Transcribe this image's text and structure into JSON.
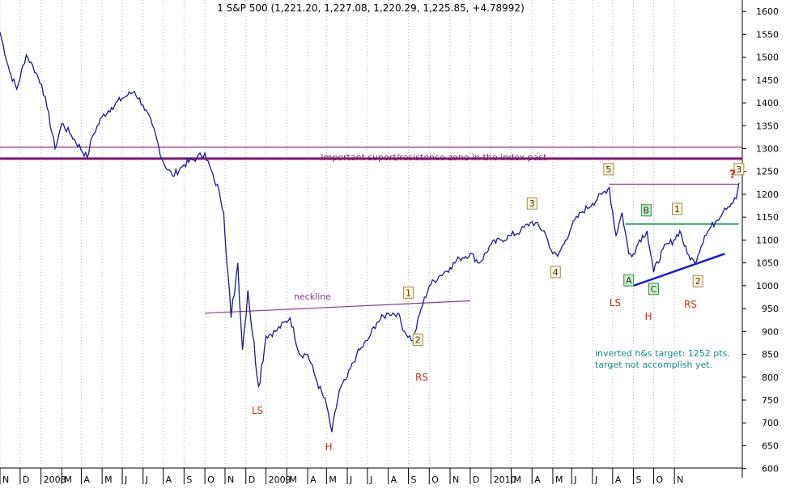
{
  "title": "1 S&P 500 (1,221.20, 1,227.08, 1,220.29, 1,225.85, +4.78992)",
  "colors": {
    "price": "#1a1a8c",
    "zone": "#7a1a6e",
    "neckline": "#8a3d8a",
    "green_line": "#2e9a5e",
    "trend": "#1a1acc",
    "red": "#c03020",
    "teal": "#1a8a8a",
    "grid": "#b8b8b8"
  },
  "annotations": {
    "zone_label": "important suport/resistence zone in the index past",
    "neckline_label": "neckline",
    "target_line1": "inverted h&s target: 1252 pts.",
    "target_line2": "target not accomplish yet.",
    "ls_left": "LS",
    "h_left": "H",
    "rs_left": "RS",
    "ls_right": "LS",
    "h_right": "H",
    "rs_right": "RS",
    "question": "?"
  },
  "wave_labels": [
    {
      "text": "1",
      "style": "yellow",
      "x": "2009-07",
      "y": 985
    },
    {
      "text": "2",
      "style": "yellow",
      "x": "2009-07-15",
      "y": 882
    },
    {
      "text": "3",
      "style": "yellow",
      "x": "2010-01-01",
      "y": 1180
    },
    {
      "text": "4",
      "style": "yellow",
      "x": "2010-02-05",
      "y": 1030
    },
    {
      "text": "5",
      "style": "yellow",
      "x": "2010-04-25",
      "y": 1255
    },
    {
      "text": "A",
      "style": "green",
      "x": "2010-05-25",
      "y": 1012
    },
    {
      "text": "B",
      "style": "green",
      "x": "2010-06-20",
      "y": 1165
    },
    {
      "text": "C",
      "style": "green",
      "x": "2010-07-01",
      "y": 993
    },
    {
      "text": "1",
      "style": "yellow",
      "x": "2010-08-05",
      "y": 1168
    },
    {
      "text": "2",
      "style": "yellow",
      "x": "2010-09-05",
      "y": 1010
    },
    {
      "text": "3",
      "style": "yellow",
      "x": "2010-11-05",
      "y": 1255
    }
  ],
  "chart_data": {
    "type": "line",
    "title": "1 S&P 500 (1,221.20, 1,227.08, 1,220.29, 1,225.85, +4.78992)",
    "x_ticks": [
      "N",
      "D",
      "2008",
      "M",
      "A",
      "M",
      "J",
      "J",
      "A",
      "S",
      "O",
      "N",
      "D",
      "2009",
      "M",
      "A",
      "M",
      "J",
      "J",
      "A",
      "S",
      "O",
      "N",
      "D",
      "2010",
      "M",
      "A",
      "M",
      "J",
      "J",
      "A",
      "S",
      "O",
      "N"
    ],
    "y_ticks": [
      600,
      650,
      700,
      750,
      800,
      850,
      900,
      950,
      1000,
      1050,
      1100,
      1150,
      1200,
      1250,
      1300,
      1350,
      1400,
      1450,
      1500,
      1550,
      1600
    ],
    "ylim": [
      580,
      1625
    ],
    "xlim": [
      "2007-11-01",
      "2010-11-10"
    ],
    "y_axis_position": "right",
    "grid": "vertical dotted",
    "series": [
      {
        "x": [
          "2007-11-01",
          "2007-11-15",
          "2007-11-26",
          "2007-12-10",
          "2007-12-20",
          "2008-01-02",
          "2008-01-10",
          "2008-01-22",
          "2008-02-01",
          "2008-02-15",
          "2008-03-10",
          "2008-03-17",
          "2008-04-01",
          "2008-04-15",
          "2008-05-01",
          "2008-05-19",
          "2008-06-01",
          "2008-06-15",
          "2008-07-01",
          "2008-07-15",
          "2008-08-01",
          "2008-08-20",
          "2008-09-01",
          "2008-09-15",
          "2008-09-22",
          "2008-09-29",
          "2008-10-10",
          "2008-10-20",
          "2008-10-27",
          "2008-11-04",
          "2008-11-20",
          "2008-12-01",
          "2008-12-15",
          "2009-01-06",
          "2009-01-20",
          "2009-02-01",
          "2009-02-15",
          "2009-03-01",
          "2009-03-09",
          "2009-03-20",
          "2009-04-01",
          "2009-04-15",
          "2009-05-01",
          "2009-05-15",
          "2009-06-01",
          "2009-06-15",
          "2009-06-25",
          "2009-07-08",
          "2009-07-20",
          "2009-08-01",
          "2009-08-15",
          "2009-09-01",
          "2009-09-15",
          "2009-10-01",
          "2009-10-15",
          "2009-11-01",
          "2009-11-15",
          "2009-12-01",
          "2009-12-15",
          "2010-01-01",
          "2010-01-19",
          "2010-02-01",
          "2010-02-08",
          "2010-02-20",
          "2010-03-01",
          "2010-03-15",
          "2010-04-01",
          "2010-04-15",
          "2010-04-26",
          "2010-05-06",
          "2010-05-15",
          "2010-05-25",
          "2010-06-01",
          "2010-06-10",
          "2010-06-21",
          "2010-07-01",
          "2010-07-15",
          "2010-07-31",
          "2010-08-09",
          "2010-08-20",
          "2010-08-31",
          "2010-09-15",
          "2010-10-01",
          "2010-10-15",
          "2010-11-01",
          "2010-11-05"
        ],
        "values": [
          1555,
          1470,
          1430,
          1505,
          1480,
          1440,
          1390,
          1300,
          1355,
          1330,
          1280,
          1325,
          1370,
          1390,
          1410,
          1425,
          1395,
          1350,
          1270,
          1240,
          1265,
          1280,
          1290,
          1230,
          1210,
          1160,
          930,
          1050,
          860,
          990,
          780,
          890,
          900,
          930,
          850,
          850,
          790,
          740,
          680,
          770,
          800,
          850,
          880,
          920,
          940,
          940,
          900,
          880,
          950,
          1000,
          1020,
          1040,
          1060,
          1070,
          1050,
          1090,
          1100,
          1110,
          1120,
          1140,
          1120,
          1070,
          1065,
          1100,
          1130,
          1160,
          1180,
          1200,
          1215,
          1110,
          1160,
          1070,
          1070,
          1100,
          1120,
          1030,
          1080,
          1100,
          1120,
          1070,
          1050,
          1110,
          1140,
          1170,
          1190,
          1225
        ]
      }
    ],
    "horizontal_lines": [
      {
        "y": 1303,
        "label": ""
      },
      {
        "y": 1278,
        "label": "important suport/resistence zone in the index past"
      },
      {
        "y": 1222,
        "x_start": "2010-04-26",
        "x_end": "2010-11-05",
        "label": ""
      },
      {
        "y": 1135,
        "x_start": "2010-05-20",
        "x_end": "2010-11-05",
        "label": ""
      }
    ],
    "trendlines": [
      {
        "label": "neckline",
        "x": [
          "2008-09-01",
          "2009-10-01"
        ],
        "y": [
          940,
          967
        ]
      },
      {
        "label": "",
        "x": [
          "2010-06-01",
          "2010-10-15"
        ],
        "y": [
          1000,
          1070
        ]
      }
    ]
  }
}
